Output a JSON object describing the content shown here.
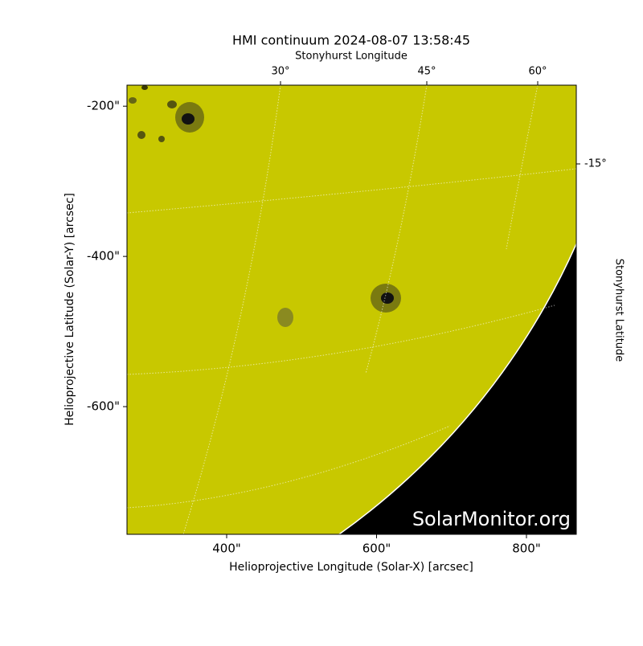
{
  "chart_data": {
    "type": "image",
    "title": "HMI continuum 2024-08-07 13:58:45",
    "x_label": "Helioprojective Longitude (Solar-X) [arcsec]",
    "y_label": "Helioprojective Latitude (Solar-Y) [arcsec]",
    "top_axis_label": "Stonyhurst Longitude",
    "right_axis_label": "Stonyhurst Latitude",
    "watermark": "SolarMonitor.org",
    "xlim": [
      267,
      866.5
    ],
    "ylim": [
      -770,
      -172
    ],
    "xticks": [
      {
        "value": 400,
        "label": "400\""
      },
      {
        "value": 600,
        "label": "600\""
      },
      {
        "value": 800,
        "label": "800\""
      }
    ],
    "yticks": [
      {
        "value": -200,
        "label": "-200\""
      },
      {
        "value": -400,
        "label": "-400\""
      },
      {
        "value": -600,
        "label": "-600\""
      }
    ],
    "top_ticks": [
      {
        "value": 30,
        "label": "30°"
      },
      {
        "value": 45,
        "label": "45°"
      },
      {
        "value": 60,
        "label": "60°"
      }
    ],
    "right_ticks": [
      {
        "value": -15,
        "label": "-15°"
      }
    ],
    "color": "#c8c800"
  }
}
